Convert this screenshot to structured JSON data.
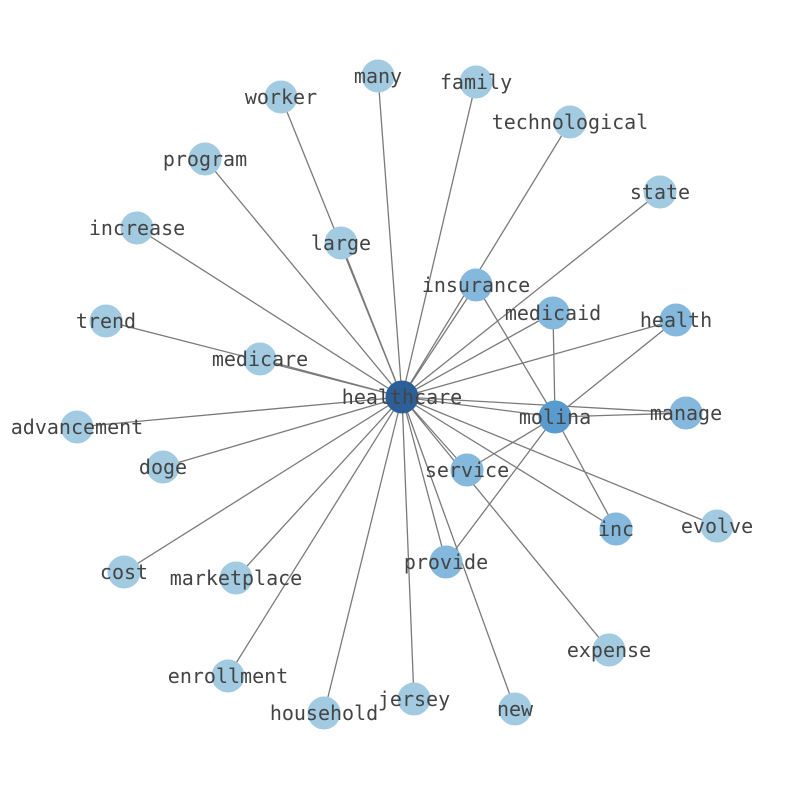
{
  "graph": {
    "center": "healthcare",
    "colors": {
      "leaf": "#a2cbe2",
      "mid": "#84b8dc",
      "hub2": "#5a9bcf",
      "hub": "#2c5f97",
      "edge": "#7a7a7a",
      "label": "#444444"
    },
    "nodes": [
      {
        "id": "healthcare",
        "level": "hub"
      },
      {
        "id": "molina",
        "level": "hub2"
      },
      {
        "id": "many",
        "level": "leaf"
      },
      {
        "id": "family",
        "level": "leaf"
      },
      {
        "id": "worker",
        "level": "leaf"
      },
      {
        "id": "technological",
        "level": "leaf"
      },
      {
        "id": "program",
        "level": "leaf"
      },
      {
        "id": "state",
        "level": "leaf"
      },
      {
        "id": "increase",
        "level": "leaf"
      },
      {
        "id": "large",
        "level": "leaf"
      },
      {
        "id": "insurance",
        "level": "mid"
      },
      {
        "id": "medicaid",
        "level": "mid"
      },
      {
        "id": "health",
        "level": "mid"
      },
      {
        "id": "trend",
        "level": "leaf"
      },
      {
        "id": "medicare",
        "level": "leaf"
      },
      {
        "id": "advancement",
        "level": "leaf"
      },
      {
        "id": "manage",
        "level": "mid"
      },
      {
        "id": "doge",
        "level": "leaf"
      },
      {
        "id": "service",
        "level": "mid"
      },
      {
        "id": "inc",
        "level": "mid"
      },
      {
        "id": "evolve",
        "level": "leaf"
      },
      {
        "id": "cost",
        "level": "leaf"
      },
      {
        "id": "marketplace",
        "level": "leaf"
      },
      {
        "id": "provide",
        "level": "mid"
      },
      {
        "id": "expense",
        "level": "leaf"
      },
      {
        "id": "enrollment",
        "level": "leaf"
      },
      {
        "id": "household",
        "level": "leaf"
      },
      {
        "id": "jersey",
        "level": "leaf"
      },
      {
        "id": "new",
        "level": "leaf"
      }
    ],
    "edges": [
      [
        "healthcare",
        "molina"
      ],
      [
        "healthcare",
        "many"
      ],
      [
        "healthcare",
        "family"
      ],
      [
        "healthcare",
        "worker"
      ],
      [
        "healthcare",
        "technological"
      ],
      [
        "healthcare",
        "program"
      ],
      [
        "healthcare",
        "state"
      ],
      [
        "healthcare",
        "increase"
      ],
      [
        "healthcare",
        "large"
      ],
      [
        "healthcare",
        "insurance"
      ],
      [
        "healthcare",
        "medicaid"
      ],
      [
        "healthcare",
        "health"
      ],
      [
        "healthcare",
        "trend"
      ],
      [
        "healthcare",
        "medicare"
      ],
      [
        "healthcare",
        "advancement"
      ],
      [
        "healthcare",
        "manage"
      ],
      [
        "healthcare",
        "doge"
      ],
      [
        "healthcare",
        "service"
      ],
      [
        "healthcare",
        "inc"
      ],
      [
        "healthcare",
        "evolve"
      ],
      [
        "healthcare",
        "cost"
      ],
      [
        "healthcare",
        "marketplace"
      ],
      [
        "healthcare",
        "provide"
      ],
      [
        "healthcare",
        "expense"
      ],
      [
        "healthcare",
        "enrollment"
      ],
      [
        "healthcare",
        "household"
      ],
      [
        "healthcare",
        "jersey"
      ],
      [
        "healthcare",
        "new"
      ],
      [
        "molina",
        "insurance"
      ],
      [
        "molina",
        "medicaid"
      ],
      [
        "molina",
        "health"
      ],
      [
        "molina",
        "manage"
      ],
      [
        "molina",
        "service"
      ],
      [
        "molina",
        "provide"
      ],
      [
        "molina",
        "inc"
      ]
    ]
  }
}
